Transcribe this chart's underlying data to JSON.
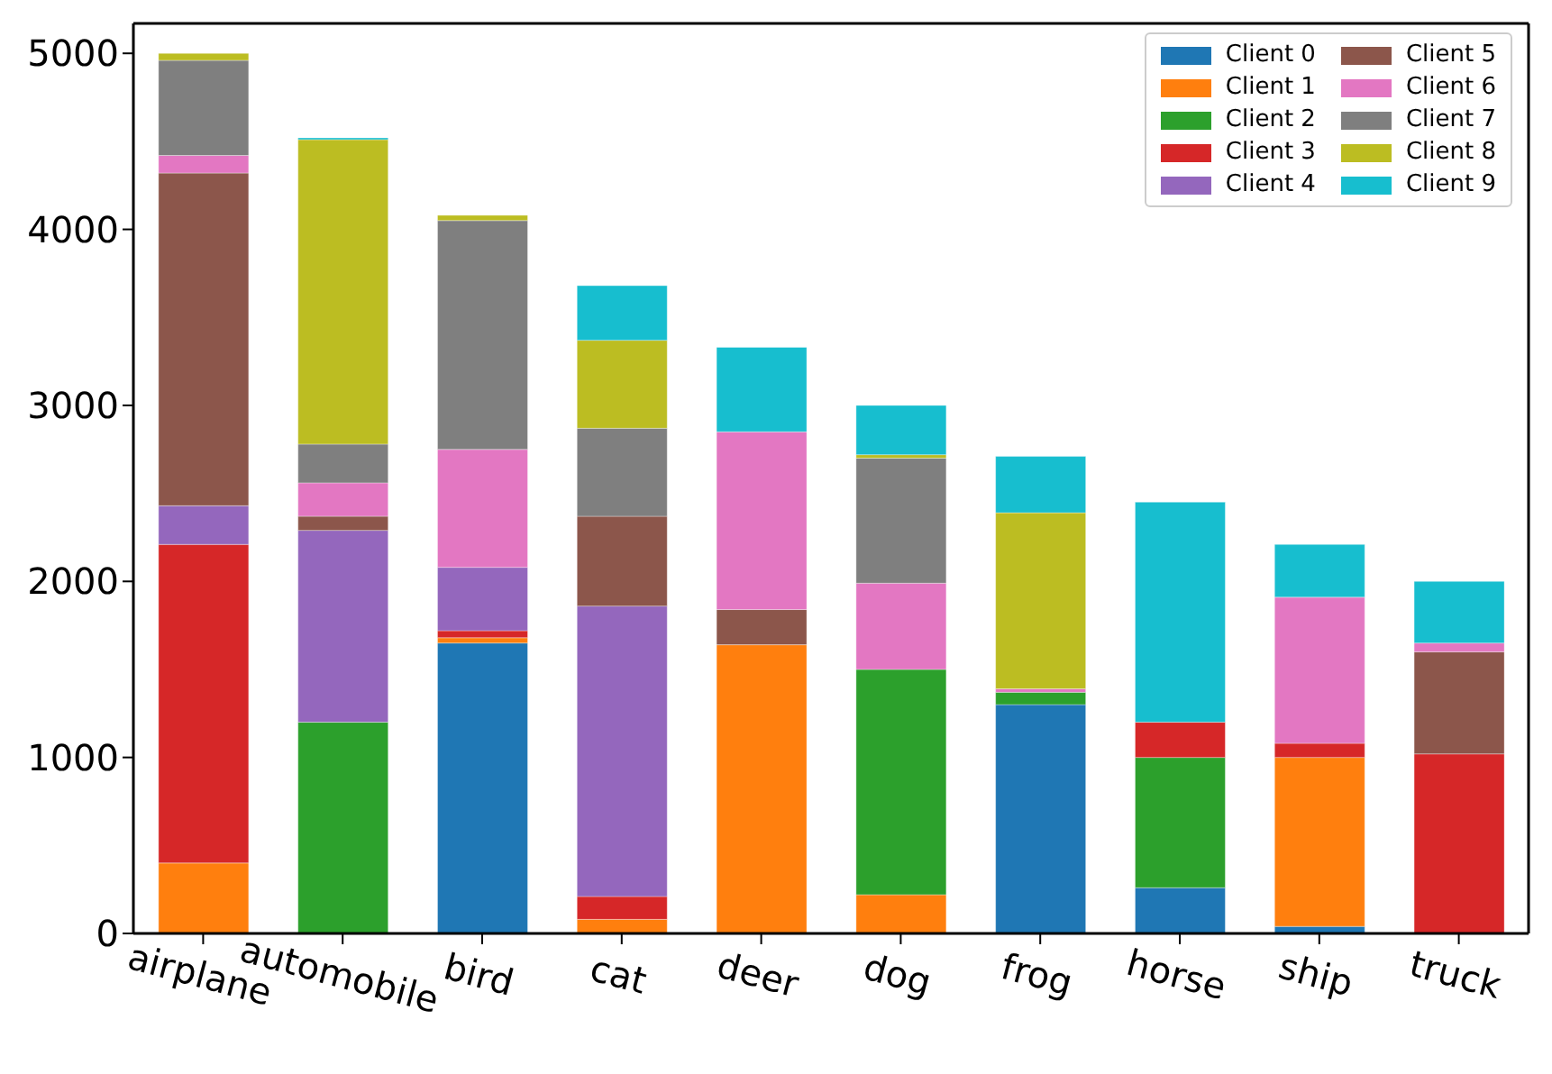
{
  "chart_data": {
    "type": "bar",
    "stacked": true,
    "categories": [
      "airplane",
      "automobile",
      "bird",
      "cat",
      "deer",
      "dog",
      "frog",
      "horse",
      "ship",
      "truck"
    ],
    "series": [
      {
        "name": "Client 0",
        "color": "#1f77b4",
        "values": [
          0,
          0,
          1650,
          0,
          0,
          0,
          1300,
          260,
          40,
          0
        ]
      },
      {
        "name": "Client 1",
        "color": "#ff7f0e",
        "values": [
          400,
          0,
          30,
          80,
          1640,
          220,
          0,
          0,
          960,
          0
        ]
      },
      {
        "name": "Client 2",
        "color": "#2ca02c",
        "values": [
          0,
          1200,
          0,
          0,
          0,
          1280,
          70,
          740,
          0,
          0
        ]
      },
      {
        "name": "Client 3",
        "color": "#d62728",
        "values": [
          1810,
          0,
          40,
          130,
          0,
          0,
          0,
          200,
          80,
          1020
        ]
      },
      {
        "name": "Client 4",
        "color": "#9467bd",
        "values": [
          220,
          1090,
          360,
          1650,
          0,
          0,
          0,
          0,
          0,
          0
        ]
      },
      {
        "name": "Client 5",
        "color": "#8c564b",
        "values": [
          1890,
          80,
          0,
          510,
          200,
          0,
          0,
          0,
          0,
          580
        ]
      },
      {
        "name": "Client 6",
        "color": "#e377c2",
        "values": [
          100,
          190,
          670,
          0,
          1010,
          490,
          20,
          0,
          830,
          50
        ]
      },
      {
        "name": "Client 7",
        "color": "#7f7f7f",
        "values": [
          540,
          220,
          1300,
          500,
          0,
          710,
          0,
          0,
          0,
          0
        ]
      },
      {
        "name": "Client 8",
        "color": "#bcbd22",
        "values": [
          40,
          1730,
          30,
          500,
          0,
          20,
          1000,
          0,
          0,
          0
        ]
      },
      {
        "name": "Client 9",
        "color": "#17becf",
        "values": [
          0,
          10,
          0,
          310,
          480,
          280,
          320,
          1250,
          300,
          350
        ]
      }
    ],
    "ylim": [
      0,
      5170
    ],
    "yticks": [
      0,
      1000,
      2000,
      3000,
      4000,
      5000
    ],
    "legend": "top right"
  }
}
